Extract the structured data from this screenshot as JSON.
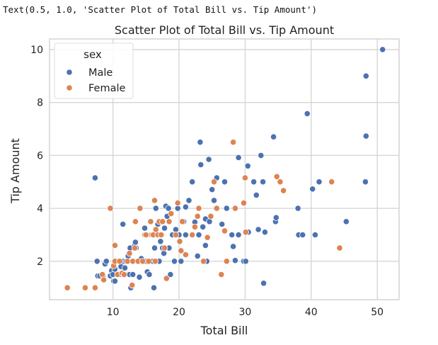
{
  "output_repr": "Text(0.5, 1.0, 'Scatter Plot of Total Bill vs. Tip Amount')",
  "chart_data": {
    "type": "scatter",
    "title": "Scatter Plot of Total Bill vs. Tip Amount",
    "xlabel": "Total Bill",
    "ylabel": "Tip Amount",
    "xlim": [
      0.4,
      53.3
    ],
    "ylim": [
      0.55,
      10.4
    ],
    "xticks": [
      10,
      20,
      30,
      40,
      50
    ],
    "yticks": [
      2,
      4,
      6,
      8,
      10
    ],
    "grid": true,
    "legend": {
      "title": "sex",
      "placement": "top-left"
    },
    "series": [
      {
        "name": "Male",
        "color": "#4c72b0",
        "points": [
          [
            7.3,
            5.15
          ],
          [
            7.6,
            2.0
          ],
          [
            7.7,
            1.45
          ],
          [
            8.0,
            1.45
          ],
          [
            8.5,
            1.45
          ],
          [
            8.8,
            1.9
          ],
          [
            9.0,
            2.0
          ],
          [
            9.6,
            1.45
          ],
          [
            9.8,
            1.65
          ],
          [
            10.0,
            1.5
          ],
          [
            10.1,
            1.25
          ],
          [
            10.3,
            1.25
          ],
          [
            10.3,
            1.7
          ],
          [
            10.5,
            2.0
          ],
          [
            11.0,
            1.5
          ],
          [
            11.2,
            1.8
          ],
          [
            11.5,
            3.4
          ],
          [
            11.6,
            2.0
          ],
          [
            11.8,
            1.75
          ],
          [
            12.0,
            2.0
          ],
          [
            12.3,
            2.2
          ],
          [
            12.5,
            1.5
          ],
          [
            12.6,
            2.5
          ],
          [
            12.7,
            1.0
          ],
          [
            13.0,
            2.0
          ],
          [
            13.0,
            1.5
          ],
          [
            13.3,
            2.6
          ],
          [
            13.4,
            2.72
          ],
          [
            13.5,
            2.5
          ],
          [
            13.8,
            2.0
          ],
          [
            14.0,
            1.4
          ],
          [
            14.3,
            2.1
          ],
          [
            14.5,
            2.0
          ],
          [
            14.8,
            3.25
          ],
          [
            15.0,
            2.0
          ],
          [
            15.0,
            3.0
          ],
          [
            15.2,
            1.6
          ],
          [
            15.5,
            1.5
          ],
          [
            15.7,
            3.0
          ],
          [
            16.0,
            2.0
          ],
          [
            16.2,
            1.0
          ],
          [
            16.3,
            2.5
          ],
          [
            16.5,
            4.0
          ],
          [
            16.8,
            3.4
          ],
          [
            17.0,
            2.0
          ],
          [
            17.2,
            2.75
          ],
          [
            17.5,
            2.5
          ],
          [
            17.7,
            2.3
          ],
          [
            17.8,
            3.25
          ],
          [
            18.0,
            4.08
          ],
          [
            18.2,
            3.7
          ],
          [
            18.4,
            4.0
          ],
          [
            18.5,
            2.5
          ],
          [
            18.7,
            1.5
          ],
          [
            19.0,
            3.0
          ],
          [
            19.3,
            2.0
          ],
          [
            19.5,
            3.2
          ],
          [
            19.8,
            4.0
          ],
          [
            20.0,
            3.0
          ],
          [
            20.3,
            2.0
          ],
          [
            20.7,
            3.5
          ],
          [
            21.0,
            4.05
          ],
          [
            21.0,
            3.0
          ],
          [
            21.5,
            4.3
          ],
          [
            22.0,
            5.0
          ],
          [
            22.4,
            3.48
          ],
          [
            22.8,
            2.2
          ],
          [
            23.0,
            3.0
          ],
          [
            23.2,
            6.5
          ],
          [
            23.3,
            5.65
          ],
          [
            23.6,
            3.3
          ],
          [
            24.0,
            3.6
          ],
          [
            24.0,
            2.6
          ],
          [
            24.2,
            2.0
          ],
          [
            24.5,
            5.85
          ],
          [
            24.6,
            3.5
          ],
          [
            25.0,
            4.71
          ],
          [
            25.3,
            4.3
          ],
          [
            25.6,
            4.0
          ],
          [
            25.7,
            5.15
          ],
          [
            26.5,
            3.4
          ],
          [
            26.9,
            5.0
          ],
          [
            27.2,
            4.0
          ],
          [
            28.0,
            3.0
          ],
          [
            28.2,
            2.56
          ],
          [
            28.5,
            2.03
          ],
          [
            29.0,
            3.0
          ],
          [
            29.0,
            5.92
          ],
          [
            29.8,
            2.0
          ],
          [
            30.1,
            2.0
          ],
          [
            30.4,
            5.6
          ],
          [
            30.5,
            3.1
          ],
          [
            31.3,
            5.0
          ],
          [
            31.7,
            4.5
          ],
          [
            32.0,
            3.2
          ],
          [
            32.4,
            6.0
          ],
          [
            32.8,
            1.17
          ],
          [
            33.0,
            3.1
          ],
          [
            32.7,
            5.0
          ],
          [
            34.3,
            6.7
          ],
          [
            34.6,
            3.5
          ],
          [
            34.7,
            3.65
          ],
          [
            38.0,
            4.0
          ],
          [
            38.1,
            3.0
          ],
          [
            38.7,
            3.0
          ],
          [
            39.4,
            7.58
          ],
          [
            40.2,
            4.73
          ],
          [
            40.6,
            3.0
          ],
          [
            41.2,
            5.0
          ],
          [
            45.3,
            3.5
          ],
          [
            48.2,
            5.0
          ],
          [
            48.3,
            6.73
          ],
          [
            48.3,
            9.0
          ],
          [
            50.8,
            10.0
          ]
        ]
      },
      {
        "name": "Female",
        "color": "#dd8452",
        "points": [
          [
            3.1,
            1.0
          ],
          [
            5.8,
            1.0
          ],
          [
            7.3,
            1.0
          ],
          [
            8.4,
            1.5
          ],
          [
            8.6,
            1.3
          ],
          [
            9.6,
            4.0
          ],
          [
            10.1,
            1.83
          ],
          [
            10.3,
            2.0
          ],
          [
            10.3,
            2.6
          ],
          [
            10.7,
            1.5
          ],
          [
            11.0,
            2.0
          ],
          [
            11.4,
            1.55
          ],
          [
            11.7,
            1.5
          ],
          [
            12.2,
            2.0
          ],
          [
            12.5,
            2.3
          ],
          [
            12.9,
            1.1
          ],
          [
            13.0,
            2.0
          ],
          [
            13.3,
            2.5
          ],
          [
            13.4,
            3.5
          ],
          [
            13.8,
            2.0
          ],
          [
            14.1,
            4.0
          ],
          [
            14.5,
            2.0
          ],
          [
            14.8,
            3.0
          ],
          [
            15.0,
            3.0
          ],
          [
            15.4,
            2.0
          ],
          [
            15.7,
            3.5
          ],
          [
            15.9,
            3.0
          ],
          [
            16.1,
            3.0
          ],
          [
            16.3,
            4.3
          ],
          [
            16.4,
            2.0
          ],
          [
            16.5,
            3.2
          ],
          [
            16.8,
            3.0
          ],
          [
            17.0,
            3.5
          ],
          [
            17.3,
            3.0
          ],
          [
            17.5,
            3.5
          ],
          [
            17.8,
            2.5
          ],
          [
            18.1,
            1.35
          ],
          [
            18.5,
            3.5
          ],
          [
            18.8,
            3.8
          ],
          [
            19.5,
            3.0
          ],
          [
            19.8,
            4.2
          ],
          [
            20.1,
            2.75
          ],
          [
            20.3,
            2.4
          ],
          [
            20.5,
            3.5
          ],
          [
            21.0,
            2.25
          ],
          [
            22.0,
            3.0
          ],
          [
            22.4,
            3.3
          ],
          [
            22.8,
            3.7
          ],
          [
            23.0,
            4.0
          ],
          [
            23.7,
            2.0
          ],
          [
            24.3,
            2.9
          ],
          [
            24.8,
            3.7
          ],
          [
            25.3,
            5.0
          ],
          [
            25.7,
            4.0
          ],
          [
            26.4,
            1.5
          ],
          [
            26.9,
            3.15
          ],
          [
            27.2,
            2.0
          ],
          [
            28.2,
            6.5
          ],
          [
            28.5,
            4.0
          ],
          [
            29.8,
            4.2
          ],
          [
            30.1,
            3.1
          ],
          [
            30.0,
            5.15
          ],
          [
            34.8,
            5.2
          ],
          [
            35.3,
            5.0
          ],
          [
            35.8,
            4.67
          ],
          [
            43.1,
            5.0
          ],
          [
            44.3,
            2.5
          ]
        ]
      }
    ]
  }
}
